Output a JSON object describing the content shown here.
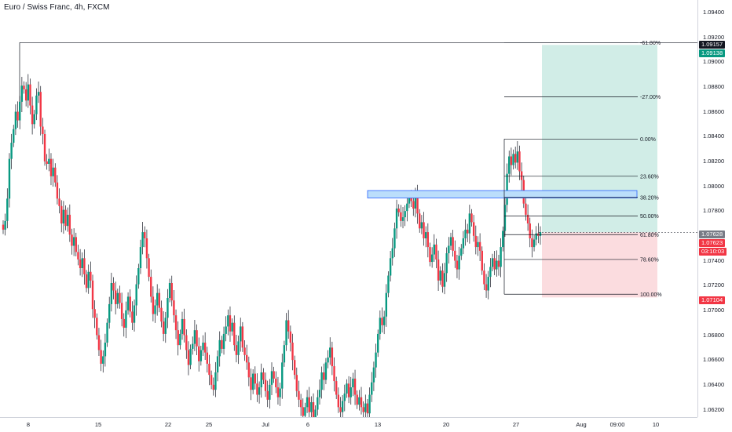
{
  "header": {
    "symbol": "Euro / Swiss Franc, 4h, FXCM"
  },
  "price_axis": {
    "ticks": [
      "1.09400",
      "1.09200",
      "1.09000",
      "1.08800",
      "1.08600",
      "1.08400",
      "1.08200",
      "1.08000",
      "1.07800",
      "1.07600",
      "1.07400",
      "1.07200",
      "1.07000",
      "1.06800",
      "1.06600",
      "1.06400",
      "1.06200"
    ],
    "tags": {
      "target": {
        "text": "1.09157",
        "color": "#131722"
      },
      "take_profit": {
        "text": "1.09138",
        "color": "#089981"
      },
      "last_close": {
        "text": "1.07628",
        "color": "#787b86"
      },
      "current": {
        "text": "1.07623",
        "color": "#f23645"
      },
      "countdown": {
        "text": "03:10:03",
        "color": "#f23645"
      },
      "stop": {
        "text": "1.07104",
        "color": "#f23645"
      }
    }
  },
  "time_axis": {
    "ticks": [
      "8",
      "15",
      "22",
      "25",
      "Jul",
      "6",
      "13",
      "20",
      "27",
      "Aug",
      "09:00",
      "10"
    ]
  },
  "fibonacci": {
    "levels": [
      {
        "label": "-61.80%",
        "price": 1.09157
      },
      {
        "label": "-27.00%",
        "price": 1.0872
      },
      {
        "label": "0.00%",
        "price": 1.0838
      },
      {
        "label": "23.60%",
        "price": 1.0808
      },
      {
        "label": "38.20%",
        "price": 1.0791
      },
      {
        "label": "50.00%",
        "price": 1.0776
      },
      {
        "label": "61.80%",
        "price": 1.0761
      },
      {
        "label": "78.60%",
        "price": 1.0741
      },
      {
        "label": "100.00%",
        "price": 1.0713
      }
    ]
  },
  "position": {
    "entry": 1.07628,
    "target": 1.09138,
    "stop": 1.07104,
    "profit_color": "#d1ede7",
    "loss_color": "#fbdcdf"
  },
  "zone": {
    "top": 1.07965,
    "bottom": 1.07905,
    "fill": "#bbdefb",
    "stroke": "#2962ff"
  },
  "colors": {
    "up": "#089981",
    "down": "#f23645",
    "wick": "#131722"
  },
  "chart_data": {
    "type": "candlestick",
    "close": [
      1.0765,
      1.0772,
      1.079,
      1.0822,
      1.0835,
      1.0846,
      1.086,
      1.0853,
      1.0868,
      1.0881,
      1.0878,
      1.0869,
      1.0882,
      1.0865,
      1.085,
      1.0858,
      1.0873,
      1.0876,
      1.0848,
      1.0842,
      1.082,
      1.0818,
      1.0822,
      1.0808,
      1.0815,
      1.0803,
      1.079,
      1.0784,
      1.077,
      1.0781,
      1.0768,
      1.0777,
      1.0761,
      1.0752,
      1.0759,
      1.0747,
      1.0741,
      1.0734,
      1.0742,
      1.0729,
      1.0718,
      1.0731,
      1.0724,
      1.0701,
      1.0694,
      1.068,
      1.0668,
      1.0657,
      1.0663,
      1.0674,
      1.069,
      1.0705,
      1.0722,
      1.0716,
      1.0705,
      1.0714,
      1.0706,
      1.0693,
      1.0686,
      1.07,
      1.0711,
      1.0699,
      1.069,
      1.0704,
      1.0721,
      1.0734,
      1.0751,
      1.0763,
      1.0758,
      1.0742,
      1.0727,
      1.0711,
      1.0697,
      1.0704,
      1.0714,
      1.0702,
      1.0691,
      1.0681,
      1.0694,
      1.071,
      1.0722,
      1.0708,
      1.0696,
      1.0684,
      1.0672,
      1.0681,
      1.0693,
      1.068,
      1.0668,
      1.0656,
      1.0669,
      1.0673,
      1.0684,
      1.0671,
      1.0659,
      1.0668,
      1.0674,
      1.0666,
      1.0657,
      1.0648,
      1.064,
      1.0636,
      1.065,
      1.0663,
      1.0676,
      1.0669,
      1.0681,
      1.0687,
      1.0696,
      1.0683,
      1.069,
      1.0672,
      1.0664,
      1.0675,
      1.0687,
      1.067,
      1.0664,
      1.0658,
      1.0646,
      1.0636,
      1.0649,
      1.0641,
      1.0632,
      1.0638,
      1.065,
      1.0644,
      1.0635,
      1.0628,
      1.064,
      1.0651,
      1.0645,
      1.0638,
      1.063,
      1.0637,
      1.0658,
      1.0672,
      1.0692,
      1.0683,
      1.0674,
      1.066,
      1.0648,
      1.0635,
      1.0628,
      1.0622,
      1.0615,
      1.0622,
      1.063,
      1.0618,
      1.0626,
      1.0612,
      1.062,
      1.063,
      1.0636,
      1.065,
      1.0644,
      1.0658,
      1.0662,
      1.067,
      1.0655,
      1.0643,
      1.0632,
      1.0622,
      1.0618,
      1.0627,
      1.0633,
      1.0641,
      1.063,
      1.0638,
      1.0645,
      1.0632,
      1.0624,
      1.063,
      1.0622,
      1.0618,
      1.0625,
      1.0617,
      1.0632,
      1.0642,
      1.0654,
      1.0666,
      1.0681,
      1.0694,
      1.0688,
      1.0695,
      1.0714,
      1.0728,
      1.0742,
      1.075,
      1.0766,
      1.0782,
      1.0779,
      1.0772,
      1.0775,
      1.078,
      1.0786,
      1.0791,
      1.0788,
      1.0782,
      1.0794,
      1.0778,
      1.0766,
      1.0771,
      1.0758,
      1.0763,
      1.0751,
      1.0739,
      1.0745,
      1.0753,
      1.0741,
      1.0724,
      1.0732,
      1.0719,
      1.073,
      1.0746,
      1.0752,
      1.0759,
      1.0748,
      1.074,
      1.0733,
      1.0744,
      1.075,
      1.0758,
      1.0765,
      1.0762,
      1.0778,
      1.0771,
      1.076,
      1.0751,
      1.0755,
      1.0748,
      1.0732,
      1.0721,
      1.0716,
      1.0727,
      1.0735,
      1.0742,
      1.0733,
      1.074,
      1.0735,
      1.0751,
      1.0764,
      1.0785,
      1.081,
      1.0824,
      1.0817,
      1.0826,
      1.0819,
      1.0828,
      1.0812,
      1.0805,
      1.0786,
      1.0777,
      1.077,
      1.0758,
      1.0751,
      1.0757,
      1.0762,
      1.076,
      1.0763
    ],
    "title": "Euro / Swiss Franc, 4h, FXCM",
    "xlabel": "",
    "ylabel": "",
    "ylim": [
      1.0614,
      1.095
    ]
  }
}
